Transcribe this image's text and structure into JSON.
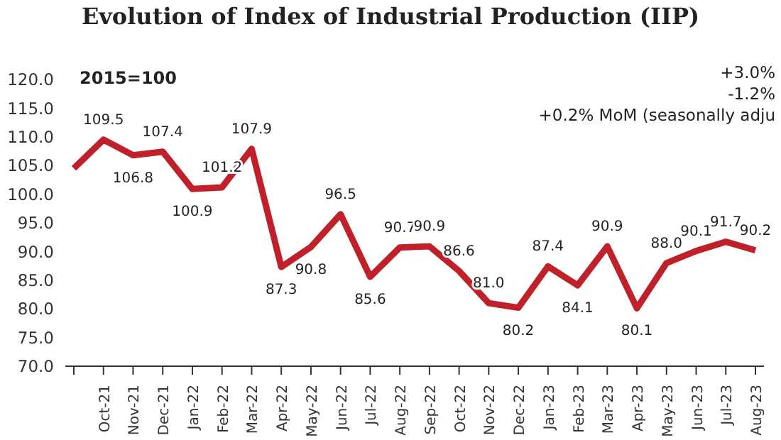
{
  "chart_data": {
    "type": "line",
    "title": "Evolution of Index of Industrial Production (IIP)",
    "subtitle": "2015=100",
    "categories": [
      null,
      "Oct-21",
      "Nov-21",
      "Dec-21",
      "Jan-22",
      "Feb-22",
      "Mar-22",
      "Apr-22",
      "May-22",
      "Jun-22",
      "Jul-22",
      "Aug-22",
      "Sep-22",
      "Oct-22",
      "Nov-22",
      "Dec-22",
      "Jan-23",
      "Feb-23",
      "Mar-23",
      "Apr-23",
      "May-23",
      "Jun-23",
      "Jul-23",
      "Aug-23"
    ],
    "series": [
      {
        "color": "#c0202a",
        "values": [
          104.5,
          109.5,
          106.8,
          107.4,
          100.9,
          101.2,
          107.9,
          87.3,
          90.8,
          96.5,
          85.6,
          90.7,
          90.9,
          86.6,
          81.0,
          80.2,
          87.4,
          84.1,
          90.9,
          80.1,
          88.0,
          90.1,
          91.7,
          90.2
        ],
        "value_labels": [
          null,
          "109.5",
          "106.8",
          "107.4",
          "100.9",
          "101.2",
          "107.9",
          "87.3",
          "90.8",
          "96.5",
          "85.6",
          "90.7",
          "90.9",
          "86.6",
          "81.0",
          "80.2",
          "87.4",
          "84.1",
          "90.9",
          "80.1",
          "88.0",
          "90.1",
          "91.7",
          "90.2"
        ]
      }
    ],
    "ylim": [
      70,
      120
    ],
    "yticks": [
      {
        "value": 70,
        "label": "70.0"
      },
      {
        "value": 75,
        "label": "75.0"
      },
      {
        "value": 80,
        "label": "80.0"
      },
      {
        "value": 85,
        "label": "85.0"
      },
      {
        "value": 90,
        "label": "90.0"
      },
      {
        "value": 95,
        "label": "95.0"
      },
      {
        "value": 100,
        "label": "100.0"
      },
      {
        "value": 105,
        "label": "105.0"
      },
      {
        "value": 110,
        "label": "110.0"
      },
      {
        "value": 115,
        "label": "115.0"
      },
      {
        "value": 120,
        "label": "120.0"
      }
    ],
    "annotations": [
      "+3.0%",
      "-1.2%",
      "+0.2% MoM (seasonally adju"
    ],
    "grid": false,
    "legend": false,
    "marker": "none",
    "line_style": "solid"
  }
}
